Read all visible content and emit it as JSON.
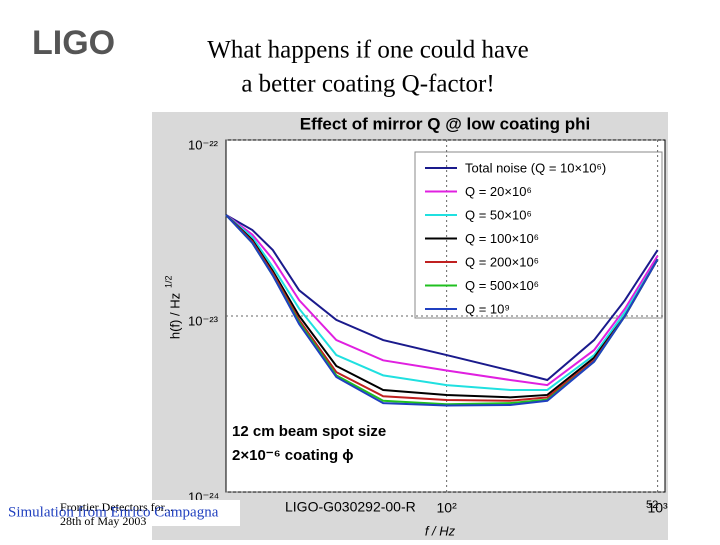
{
  "logo": "LIGO",
  "slide_title": [
    "What happens if one could have",
    "a better coating Q-factor!"
  ],
  "footer": {
    "left_top": "Frontier Detectors for...",
    "left_bottom": "28th of May 2003",
    "credit": "Simulation from Enrico Campagna",
    "doc_id": "LIGO-G030292-00-R",
    "page": "52"
  },
  "chart_data": {
    "type": "line",
    "title": "Effect of mirror Q @ low coating phi",
    "x_label": "f / Hz",
    "y_label": "h(f) / Hz",
    "y_label_exponent": "1/2",
    "annotations": [
      "12 cm beam spot size",
      "2×10⁻⁶ coating ϕ"
    ],
    "log_x": true,
    "log_y": true,
    "grid": true,
    "legend": "upper right",
    "x": [
      9,
      12,
      15,
      20,
      30,
      50,
      100,
      200,
      300,
      500,
      700,
      1000
    ],
    "xlim": [
      9,
      1084
    ],
    "xticks": [
      {
        "value": 100,
        "label": "10²"
      },
      {
        "value": 1000,
        "label": "10³"
      }
    ],
    "ylim": [
      1e-24,
      1e-22
    ],
    "yticks": [
      {
        "value": 1e-24,
        "label": "10⁻²⁴"
      },
      {
        "value": 1e-23,
        "label": "10⁻²³"
      },
      {
        "value": 1e-22,
        "label": "10⁻²²"
      }
    ],
    "series": [
      {
        "name": "Total noise (Q = 10×10⁶)",
        "color": "#1a1a8c",
        "values": [
          3.75e-23,
          3.08e-23,
          2.37e-23,
          1.4e-23,
          9.5e-24,
          7.3e-24,
          6e-24,
          4.9e-24,
          4.33e-24,
          7.3e-24,
          1.23e-23,
          2.37e-23
        ]
      },
      {
        "name": "Q = 20×10⁶",
        "color": "#e020e0",
        "values": [
          3.75e-23,
          2.9e-23,
          2.1e-23,
          1.23e-23,
          7.3e-24,
          5.6e-24,
          4.9e-24,
          4.33e-24,
          4.05e-24,
          6.4e-24,
          1.1e-23,
          2.2e-23
        ]
      },
      {
        "name": "Q = 50×10⁶",
        "color": "#20e0e0",
        "values": [
          3.75e-23,
          2.8e-23,
          1.9e-23,
          1.1e-23,
          6e-24,
          4.6e-24,
          4.05e-24,
          3.8e-24,
          3.8e-24,
          6e-24,
          1.05e-23,
          2.1e-23
        ]
      },
      {
        "name": "Q = 100×10⁶",
        "color": "#000000",
        "values": [
          3.75e-23,
          2.7e-23,
          1.8e-23,
          1e-23,
          5.2e-24,
          3.8e-24,
          3.56e-24,
          3.45e-24,
          3.56e-24,
          5.8e-24,
          1e-23,
          2.1e-23
        ]
      },
      {
        "name": "Q = 200×10⁶",
        "color": "#c02020",
        "values": [
          3.75e-23,
          2.65e-23,
          1.75e-23,
          9.5e-24,
          4.8e-24,
          3.5e-24,
          3.33e-24,
          3.3e-24,
          3.45e-24,
          5.6e-24,
          1e-23,
          2.1e-23
        ]
      },
      {
        "name": "Q = 500×10⁶",
        "color": "#20c020",
        "values": [
          3.75e-23,
          2.6e-23,
          1.7e-23,
          9.2e-24,
          4.6e-24,
          3.3e-24,
          3.15e-24,
          3.2e-24,
          3.35e-24,
          5.5e-24,
          1e-23,
          2.1e-23
        ]
      },
      {
        "name": "Q = 10⁹",
        "color": "#2040c0",
        "values": [
          3.75e-23,
          2.6e-23,
          1.7e-23,
          9e-24,
          4.5e-24,
          3.2e-24,
          3.1e-24,
          3.12e-24,
          3.3e-24,
          5.5e-24,
          1e-23,
          2.1e-23
        ]
      }
    ]
  }
}
